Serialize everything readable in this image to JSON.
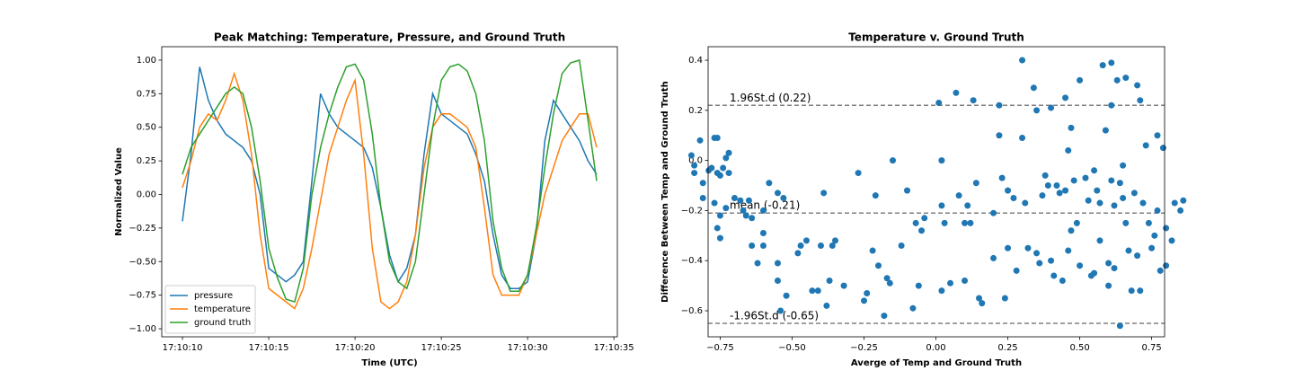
{
  "chart_data": [
    {
      "type": "line",
      "title": "Peak Matching: Temperature, Pressure, and Ground Truth",
      "x_label": "Time (UTC)",
      "y_label": "Normalized Value",
      "x": [
        "17:10:10.0",
        "17:10:10.5",
        "17:10:11.0",
        "17:10:11.5",
        "17:10:12.0",
        "17:10:12.5",
        "17:10:13.0",
        "17:10:13.5",
        "17:10:14.0",
        "17:10:14.5",
        "17:10:15.0",
        "17:10:15.5",
        "17:10:16.0",
        "17:10:16.5",
        "17:10:17.0",
        "17:10:17.5",
        "17:10:18.0",
        "17:10:18.5",
        "17:10:19.0",
        "17:10:19.5",
        "17:10:20.0",
        "17:10:20.5",
        "17:10:21.0",
        "17:10:21.5",
        "17:10:22.0",
        "17:10:22.5",
        "17:10:23.0",
        "17:10:23.5",
        "17:10:24.0",
        "17:10:24.5",
        "17:10:25.0",
        "17:10:25.5",
        "17:10:26.0",
        "17:10:26.5",
        "17:10:27.0",
        "17:10:27.5",
        "17:10:28.0",
        "17:10:28.5",
        "17:10:29.0",
        "17:10:29.5",
        "17:10:30.0",
        "17:10:30.5",
        "17:10:31.0",
        "17:10:31.5",
        "17:10:32.0",
        "17:10:32.5",
        "17:10:33.0",
        "17:10:33.5",
        "17:10:34.0"
      ],
      "series": [
        {
          "name": "pressure",
          "color": "#1f77b4",
          "values": [
            -0.2,
            0.3,
            0.95,
            0.7,
            0.55,
            0.45,
            0.4,
            0.35,
            0.25,
            0.0,
            -0.55,
            -0.6,
            -0.65,
            -0.6,
            -0.5,
            0.1,
            0.75,
            0.6,
            0.5,
            0.45,
            0.4,
            0.35,
            0.2,
            -0.1,
            -0.45,
            -0.65,
            -0.55,
            -0.3,
            0.3,
            0.75,
            0.6,
            0.55,
            0.5,
            0.45,
            0.3,
            0.1,
            -0.3,
            -0.6,
            -0.7,
            -0.7,
            -0.65,
            -0.3,
            0.4,
            0.7,
            0.6,
            0.5,
            0.4,
            0.25,
            0.15
          ]
        },
        {
          "name": "temperature",
          "color": "#ff7f0e",
          "values": [
            0.05,
            0.25,
            0.5,
            0.6,
            0.55,
            0.7,
            0.9,
            0.7,
            0.3,
            -0.3,
            -0.7,
            -0.75,
            -0.8,
            -0.85,
            -0.7,
            -0.4,
            -0.05,
            0.3,
            0.5,
            0.7,
            0.85,
            0.3,
            -0.4,
            -0.8,
            -0.85,
            -0.8,
            -0.65,
            -0.3,
            0.2,
            0.5,
            0.6,
            0.6,
            0.55,
            0.5,
            0.35,
            -0.1,
            -0.6,
            -0.75,
            -0.75,
            -0.75,
            -0.6,
            -0.3,
            0.0,
            0.2,
            0.4,
            0.5,
            0.6,
            0.6,
            0.35
          ]
        },
        {
          "name": "ground truth",
          "color": "#2ca02c",
          "values": [
            0.15,
            0.35,
            0.45,
            0.55,
            0.65,
            0.75,
            0.8,
            0.75,
            0.5,
            0.1,
            -0.4,
            -0.62,
            -0.78,
            -0.8,
            -0.55,
            0.0,
            0.35,
            0.6,
            0.8,
            0.95,
            0.97,
            0.85,
            0.45,
            -0.1,
            -0.5,
            -0.65,
            -0.7,
            -0.5,
            0.0,
            0.5,
            0.85,
            0.95,
            0.97,
            0.92,
            0.75,
            0.4,
            -0.2,
            -0.55,
            -0.72,
            -0.72,
            -0.6,
            -0.25,
            0.2,
            0.6,
            0.9,
            0.98,
            1.0,
            0.55,
            0.1
          ]
        }
      ],
      "xlim": [
        "17:10:08.8",
        "17:10:35.2"
      ],
      "xticks": [
        "17:10:10",
        "17:10:15",
        "17:10:20",
        "17:10:25",
        "17:10:30",
        "17:10:35"
      ],
      "ylim": [
        -1.06,
        1.1
      ],
      "yticks": [
        {
          "value": -1,
          "label": "−1.00"
        },
        {
          "value": -0.75,
          "label": "−0.75"
        },
        {
          "value": -0.5,
          "label": "−0.50"
        },
        {
          "value": -0.25,
          "label": "−0.25"
        },
        {
          "value": 0,
          "label": "0.00"
        },
        {
          "value": 0.25,
          "label": "0.25"
        },
        {
          "value": 0.5,
          "label": "0.50"
        },
        {
          "value": 0.75,
          "label": "0.75"
        },
        {
          "value": 1,
          "label": "1.00"
        }
      ],
      "legend": "lower left"
    },
    {
      "type": "scatter",
      "title": "Temperature v. Ground Truth",
      "x_label": "Averge of Temp and Ground Truth",
      "y_label": "Difference Between Temp and Ground Truth",
      "color": "#1f77b4",
      "x": [
        -0.85,
        -0.84,
        -0.84,
        -0.82,
        -0.81,
        -0.81,
        -0.79,
        -0.78,
        -0.77,
        -0.76,
        -0.76,
        -0.75,
        -0.74,
        -0.73,
        -0.72,
        -0.72,
        -0.77,
        -0.76,
        -0.75,
        -0.75,
        -0.73,
        -0.7,
        -0.68,
        -0.67,
        -0.66,
        -0.65,
        -0.64,
        -0.64,
        -0.62,
        -0.6,
        -0.6,
        -0.6,
        -0.58,
        -0.55,
        -0.53,
        -0.55,
        -0.55,
        -0.52,
        -0.54,
        -0.48,
        -0.47,
        -0.45,
        -0.43,
        -0.41,
        -0.4,
        -0.39,
        -0.38,
        -0.37,
        -0.36,
        -0.35,
        -0.32,
        -0.27,
        -0.25,
        -0.24,
        -0.22,
        -0.21,
        -0.2,
        -0.18,
        -0.17,
        -0.16,
        -0.15,
        -0.12,
        -0.1,
        -0.08,
        -0.07,
        -0.05,
        -0.04,
        -0.06,
        0.01,
        0.02,
        0.02,
        0.03,
        0.02,
        0.05,
        0.07,
        0.08,
        0.1,
        0.11,
        0.12,
        0.13,
        0.14,
        0.15,
        0.16,
        0.1,
        0.2,
        0.2,
        0.22,
        0.22,
        0.23,
        0.24,
        0.25,
        0.25,
        0.27,
        0.28,
        0.3,
        0.3,
        0.31,
        0.32,
        0.34,
        0.35,
        0.35,
        0.36,
        0.37,
        0.38,
        0.39,
        0.4,
        0.4,
        0.41,
        0.42,
        0.43,
        0.44,
        0.45,
        0.45,
        0.46,
        0.46,
        0.47,
        0.47,
        0.48,
        0.49,
        0.5,
        0.5,
        0.52,
        0.53,
        0.54,
        0.55,
        0.55,
        0.56,
        0.57,
        0.57,
        0.58,
        0.59,
        0.6,
        0.6,
        0.61,
        0.61,
        0.61,
        0.62,
        0.62,
        0.63,
        0.64,
        0.64,
        0.65,
        0.65,
        0.66,
        0.66,
        0.67,
        0.68,
        0.69,
        0.7,
        0.7,
        0.71,
        0.71,
        0.72,
        0.73,
        0.74,
        0.75,
        0.76,
        0.77,
        0.78,
        0.79,
        0.8,
        0.82,
        0.83,
        0.85,
        0.86,
        0.8,
        0.77
      ],
      "values": [
        0.02,
        -0.02,
        -0.05,
        0.08,
        -0.09,
        -0.15,
        -0.04,
        -0.03,
        0.09,
        0.09,
        -0.05,
        -0.06,
        -0.03,
        0.01,
        0.03,
        -0.05,
        -0.17,
        -0.27,
        -0.31,
        -0.22,
        -0.19,
        -0.15,
        -0.16,
        -0.2,
        -0.22,
        -0.16,
        -0.23,
        -0.34,
        -0.41,
        -0.2,
        -0.29,
        -0.34,
        -0.09,
        -0.13,
        -0.15,
        -0.48,
        -0.41,
        -0.54,
        -0.6,
        -0.37,
        -0.34,
        -0.32,
        -0.52,
        -0.52,
        -0.34,
        -0.13,
        -0.58,
        -0.48,
        -0.34,
        -0.32,
        -0.5,
        -0.05,
        -0.56,
        -0.53,
        -0.36,
        -0.14,
        -0.42,
        -0.62,
        -0.47,
        -0.49,
        0.0,
        -0.34,
        -0.12,
        -0.59,
        -0.25,
        -0.28,
        -0.23,
        -0.5,
        0.23,
        0.0,
        -0.18,
        -0.25,
        -0.52,
        -0.49,
        0.27,
        -0.14,
        -0.25,
        -0.18,
        -0.25,
        0.24,
        -0.09,
        -0.55,
        -0.57,
        -0.48,
        -0.21,
        -0.39,
        0.22,
        0.1,
        -0.07,
        -0.55,
        -0.35,
        -0.12,
        -0.15,
        -0.44,
        0.4,
        0.09,
        -0.17,
        -0.35,
        0.29,
        0.2,
        -0.37,
        -0.41,
        -0.14,
        -0.06,
        -0.1,
        0.21,
        -0.4,
        -0.46,
        -0.1,
        -0.13,
        -0.48,
        -0.12,
        0.25,
        0.04,
        -0.36,
        0.13,
        -0.28,
        -0.08,
        -0.25,
        0.32,
        -0.42,
        -0.07,
        -0.16,
        -0.46,
        -0.45,
        -0.04,
        -0.12,
        -0.17,
        -0.32,
        0.38,
        0.12,
        -0.41,
        -0.5,
        0.39,
        0.22,
        -0.08,
        -0.18,
        -0.43,
        0.32,
        -0.09,
        -0.66,
        -0.02,
        -0.15,
        0.33,
        -0.25,
        -0.36,
        -0.52,
        -0.13,
        0.3,
        -0.38,
        0.24,
        -0.52,
        -0.17,
        0.06,
        -0.25,
        -0.35,
        -0.3,
        0.1,
        -0.44,
        0.05,
        -0.27,
        -0.32,
        -0.17,
        -0.2,
        -0.16,
        -0.42,
        -0.2
      ],
      "hlines": [
        {
          "value": 0.22,
          "label": "1.96St.d (0.22)"
        },
        {
          "value": -0.21,
          "label": "mean (-0.21)"
        },
        {
          "value": -0.65,
          "label": "-1.96St.d (-0.65)"
        }
      ],
      "xlim": [
        -0.792,
        0.795
      ],
      "xticks": [
        {
          "value": -0.75,
          "label": "−0.75"
        },
        {
          "value": -0.5,
          "label": "−0.50"
        },
        {
          "value": -0.25,
          "label": "−0.25"
        },
        {
          "value": 0,
          "label": "0.00"
        },
        {
          "value": 0.25,
          "label": "0.25"
        },
        {
          "value": 0.5,
          "label": "0.50"
        },
        {
          "value": 0.75,
          "label": "0.75"
        }
      ],
      "ylim": [
        -0.704,
        0.454
      ],
      "yticks": [
        {
          "value": -0.6,
          "label": "−0.6"
        },
        {
          "value": -0.4,
          "label": "−0.4"
        },
        {
          "value": -0.2,
          "label": "−0.2"
        },
        {
          "value": 0,
          "label": "0.0"
        },
        0.2,
        0.4
      ]
    }
  ]
}
